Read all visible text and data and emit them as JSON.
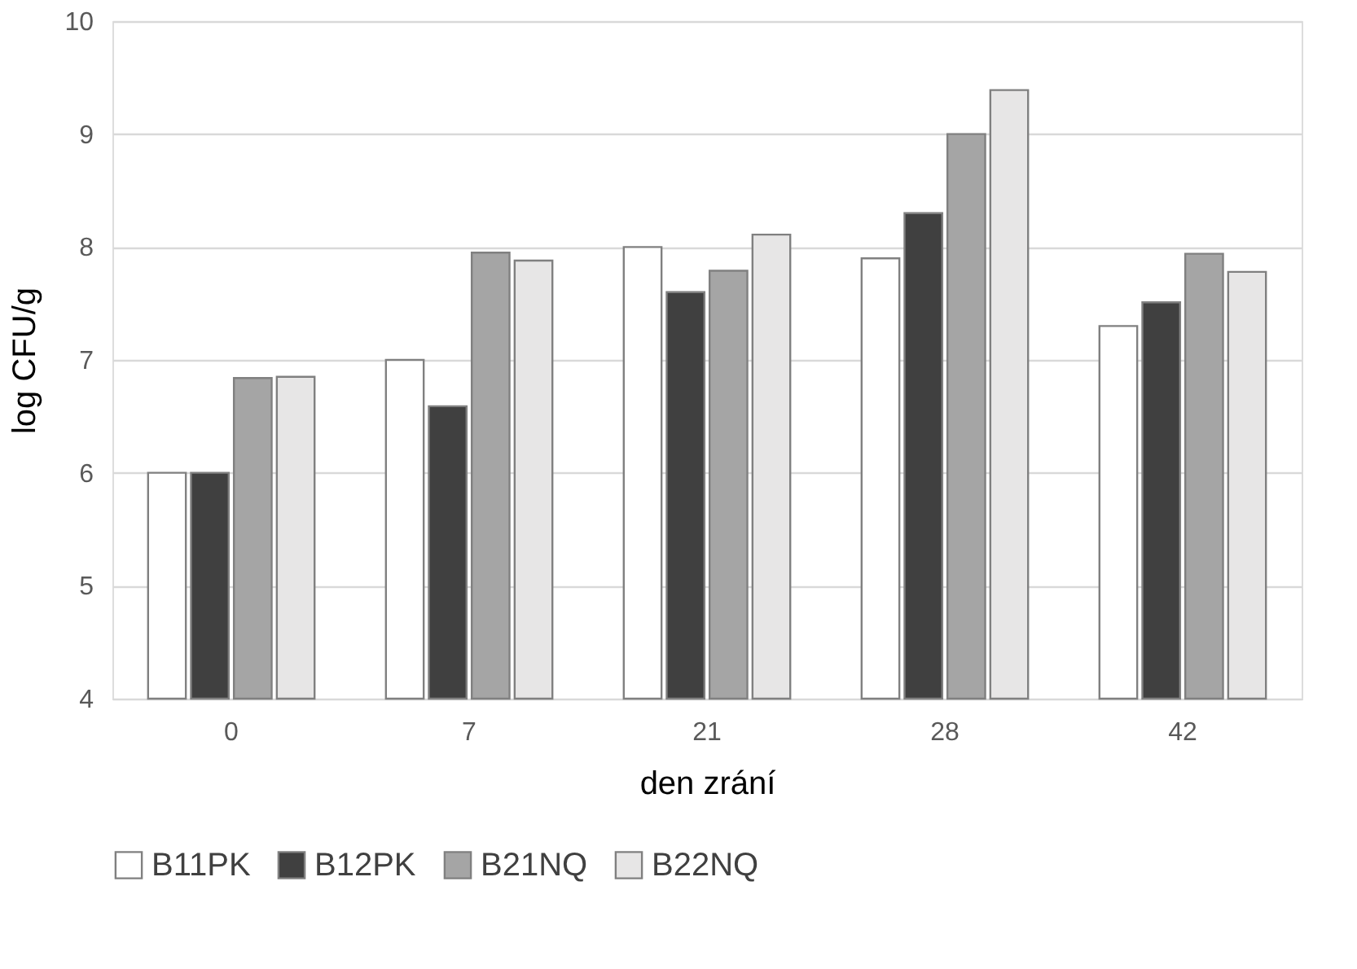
{
  "chart_data": {
    "type": "bar",
    "xlabel": "den zrání",
    "ylabel": "log CFU/g",
    "categories": [
      "0",
      "7",
      "21",
      "28",
      "42"
    ],
    "series": [
      {
        "name": "B11PK",
        "color": "#ffffff",
        "values": [
          6.0,
          7.0,
          8.0,
          7.9,
          7.3
        ]
      },
      {
        "name": "B12PK",
        "color": "#404040",
        "values": [
          6.0,
          6.59,
          7.6,
          8.3,
          7.51
        ]
      },
      {
        "name": "B21NQ",
        "color": "#a5a5a5",
        "values": [
          6.84,
          7.95,
          7.79,
          9.0,
          7.94
        ]
      },
      {
        "name": "B22NQ",
        "color": "#e7e6e6",
        "values": [
          6.85,
          7.88,
          8.11,
          9.39,
          7.78
        ]
      }
    ],
    "ylim": [
      4,
      10
    ],
    "yticks": [
      4,
      5,
      6,
      7,
      8,
      9,
      10
    ],
    "grid": "y",
    "legend": "bottom"
  }
}
